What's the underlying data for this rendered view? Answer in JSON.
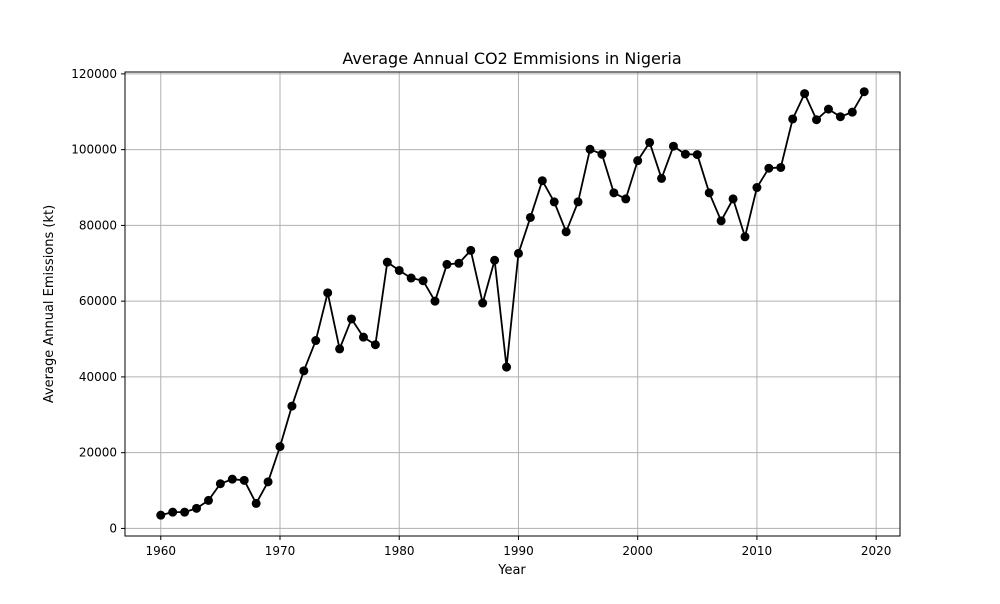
{
  "chart_data": {
    "type": "line",
    "title": "Average Annual CO2 Emmisions in Nigeria",
    "xlabel": "Year",
    "ylabel": "Average Annual Emissions (kt)",
    "xlim": [
      1957,
      2022
    ],
    "ylim": [
      -2000,
      120500
    ],
    "xticks": [
      1960,
      1970,
      1980,
      1990,
      2000,
      2010,
      2020
    ],
    "yticks": [
      0,
      20000,
      40000,
      60000,
      80000,
      100000,
      120000
    ],
    "grid": true,
    "legend": "none",
    "series": [
      {
        "color": "#000000",
        "marker": "circle",
        "x": [
          1960,
          1961,
          1962,
          1963,
          1964,
          1965,
          1966,
          1967,
          1968,
          1969,
          1970,
          1971,
          1972,
          1973,
          1974,
          1975,
          1976,
          1977,
          1978,
          1979,
          1980,
          1981,
          1982,
          1983,
          1984,
          1985,
          1986,
          1987,
          1988,
          1989,
          1990,
          1991,
          1992,
          1993,
          1994,
          1995,
          1996,
          1997,
          1998,
          1999,
          2000,
          2001,
          2002,
          2003,
          2004,
          2005,
          2006,
          2007,
          2008,
          2009,
          2010,
          2011,
          2012,
          2013,
          2014,
          2015,
          2016,
          2017,
          2018,
          2019
        ],
        "y": [
          3500,
          4300,
          4300,
          5300,
          7400,
          11800,
          13000,
          12700,
          6600,
          12300,
          21600,
          32300,
          41600,
          49600,
          62200,
          47400,
          55300,
          50500,
          48500,
          70300,
          68100,
          66100,
          65400,
          60000,
          69700,
          70000,
          73400,
          59500,
          70800,
          42600,
          72600,
          82100,
          91800,
          86200,
          78300,
          86200,
          100100,
          98800,
          88600,
          87000,
          97100,
          101900,
          92400,
          100900,
          98800,
          98700,
          88600,
          81200,
          87000,
          77000,
          90000,
          95100,
          95300,
          108100,
          114800,
          107900,
          110700,
          108700,
          109900,
          115300
        ]
      }
    ]
  }
}
